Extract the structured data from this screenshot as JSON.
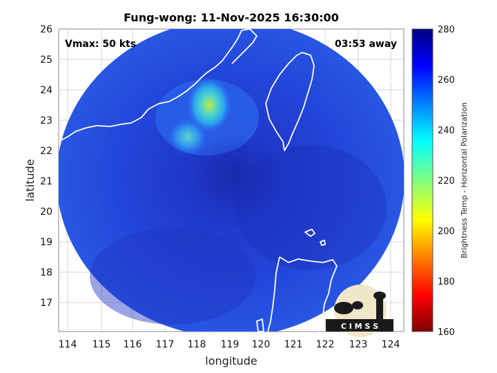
{
  "title": "Fung-wong: 11-Nov-2025 16:30:00",
  "annotations": {
    "vmax": "Vmax: 50 kts",
    "time_away": "03:53 away"
  },
  "axes": {
    "xlabel": "longitude",
    "ylabel": "latitude",
    "xlim": [
      113.6,
      124.3
    ],
    "ylim": [
      16.1,
      26.0
    ],
    "xticks": [
      "114",
      "115",
      "116",
      "117",
      "118",
      "119",
      "120",
      "121",
      "122",
      "123",
      "124"
    ],
    "yticks": [
      "17",
      "18",
      "19",
      "20",
      "21",
      "22",
      "23",
      "24",
      "25",
      "26"
    ],
    "grid": true
  },
  "colorbar": {
    "label": "Brightness Temp - Horizontal Polarization",
    "range": [
      160,
      280
    ],
    "ticks": [
      "280",
      "260",
      "240",
      "220",
      "200",
      "180",
      "160"
    ],
    "colormap": "jet"
  },
  "logo": {
    "text": "C I M S S"
  },
  "colors": {
    "ocean_scan": "#1f3fd6",
    "coast": "#ffffff",
    "grid": "#d0d0d0"
  }
}
